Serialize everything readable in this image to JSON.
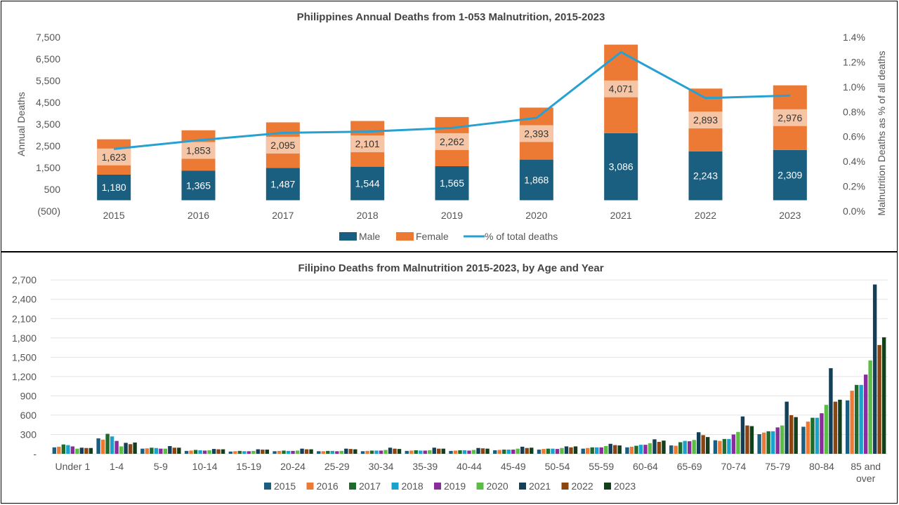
{
  "chart_data": [
    {
      "type": "bar",
      "stacked": true,
      "title": "Philippines Annual Deaths from 1-053 Malnutrition, 2015-2023",
      "categories": [
        "2015",
        "2016",
        "2017",
        "2018",
        "2019",
        "2020",
        "2021",
        "2022",
        "2023"
      ],
      "series": [
        {
          "name": "Male",
          "color": "#1a5e80",
          "axis": "left",
          "values": [
            1180,
            1365,
            1487,
            1544,
            1565,
            1868,
            3086,
            2243,
            2309
          ],
          "labels": [
            "1,180",
            "1,365",
            "1,487",
            "1,544",
            "1,565",
            "1,868",
            "3,086",
            "2,243",
            "2,309"
          ]
        },
        {
          "name": "Female",
          "color": "#ec7a35",
          "axis": "left",
          "values": [
            1623,
            1853,
            2095,
            2101,
            2262,
            2393,
            4071,
            2893,
            2976
          ],
          "labels": [
            "1,623",
            "1,853",
            "2,095",
            "2,101",
            "2,262",
            "2,393",
            "4,071",
            "2,893",
            "2,976"
          ]
        },
        {
          "name": "% of total deaths",
          "type": "line",
          "color": "#27a0d2",
          "axis": "right",
          "values": [
            0.5,
            0.57,
            0.63,
            0.64,
            0.67,
            0.75,
            1.28,
            0.91,
            0.93
          ]
        }
      ],
      "ylabel": "Annual Deaths",
      "y2label": "Malnutrition Deaths  as % of all deaths",
      "ylim": [
        -500,
        7500
      ],
      "y2lim": [
        0,
        1.4
      ],
      "yticks": [
        -500,
        500,
        1500,
        2500,
        3500,
        4500,
        5500,
        6500,
        7500
      ],
      "yticklabels": [
        "(500)",
        "500",
        "1,500",
        "2,500",
        "3,500",
        "4,500",
        "5,500",
        "6,500",
        "7,500"
      ],
      "y2ticks": [
        0,
        0.2,
        0.4,
        0.6,
        0.8,
        1.0,
        1.2,
        1.4
      ],
      "y2ticklabels": [
        "0.0%",
        "0.2%",
        "0.4%",
        "0.6%",
        "0.8%",
        "1.0%",
        "1.2%",
        "1.4%"
      ],
      "legend": "bottom"
    },
    {
      "type": "bar",
      "title": "Filipino Deaths from Malnutrition 2015-2023, by Age and Year",
      "categories": [
        "Under 1",
        "1-4",
        "5-9",
        "10-14",
        "15-19",
        "20-24",
        "25-29",
        "30-34",
        "35-39",
        "40-44",
        "45-49",
        "50-54",
        "55-59",
        "60-64",
        "65-69",
        "70-74",
        "75-79",
        "80-84",
        "85 and over"
      ],
      "series": [
        {
          "name": "2015",
          "color": "#1a5e80",
          "values": [
            100,
            240,
            80,
            45,
            35,
            40,
            40,
            40,
            45,
            45,
            55,
            65,
            80,
            100,
            130,
            210,
            305,
            420,
            830
          ]
        },
        {
          "name": "2016",
          "color": "#ec7a35",
          "values": [
            110,
            220,
            85,
            50,
            40,
            45,
            40,
            45,
            50,
            50,
            60,
            75,
            90,
            110,
            125,
            200,
            330,
            500,
            980
          ]
        },
        {
          "name": "2017",
          "color": "#1e6b2d",
          "values": [
            145,
            310,
            95,
            60,
            45,
            50,
            45,
            50,
            55,
            55,
            65,
            80,
            100,
            125,
            180,
            230,
            350,
            560,
            1070
          ]
        },
        {
          "name": "2018",
          "color": "#1aa2cc",
          "values": [
            135,
            270,
            90,
            55,
            40,
            45,
            45,
            50,
            50,
            55,
            65,
            80,
            100,
            140,
            200,
            230,
            350,
            560,
            1070
          ]
        },
        {
          "name": "2019",
          "color": "#8a2d9c",
          "values": [
            115,
            200,
            80,
            50,
            40,
            45,
            40,
            50,
            50,
            50,
            65,
            75,
            100,
            140,
            195,
            300,
            410,
            630,
            1230
          ]
        },
        {
          "name": "2020",
          "color": "#5bbd45",
          "values": [
            80,
            115,
            80,
            55,
            45,
            50,
            45,
            60,
            55,
            60,
            80,
            90,
            120,
            165,
            215,
            340,
            440,
            760,
            1450
          ]
        },
        {
          "name": "2021",
          "color": "#143f58",
          "values": [
            95,
            170,
            120,
            75,
            70,
            80,
            80,
            95,
            95,
            90,
            110,
            115,
            155,
            225,
            335,
            580,
            810,
            1330,
            2630
          ]
        },
        {
          "name": "2022",
          "color": "#8b4513",
          "values": [
            90,
            150,
            95,
            70,
            65,
            70,
            75,
            80,
            80,
            85,
            90,
            100,
            135,
            185,
            290,
            440,
            600,
            810,
            1690
          ]
        },
        {
          "name": "2023",
          "color": "#143f1c",
          "values": [
            90,
            175,
            95,
            70,
            65,
            70,
            70,
            75,
            80,
            80,
            95,
            115,
            130,
            205,
            260,
            430,
            570,
            840,
            1810
          ]
        }
      ],
      "ylim": [
        0,
        2800
      ],
      "yticks": [
        0,
        300,
        600,
        900,
        1200,
        1500,
        1800,
        2100,
        2400,
        2700
      ],
      "yticklabels": [
        "-",
        "300",
        "600",
        "900",
        "1,200",
        "1,500",
        "1,800",
        "2,100",
        "2,400",
        "2,700"
      ],
      "legend": "bottom"
    }
  ]
}
